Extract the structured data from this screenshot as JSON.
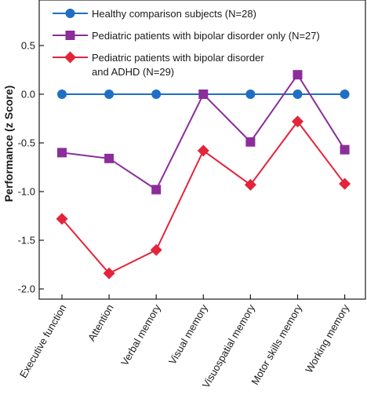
{
  "chart_data": {
    "type": "line",
    "ylabel": "Performance (z Score)",
    "xlabel": "",
    "ylim": [
      -2.0,
      0.5
    ],
    "yticks": [
      "0.5",
      "0.0",
      "-0.5",
      "-1.0",
      "-1.5",
      "-2.0"
    ],
    "ytick_values": [
      0.5,
      0.0,
      -0.5,
      -1.0,
      -1.5,
      -2.0
    ],
    "grid": false,
    "legend_position": "top",
    "categories": [
      "Executive function",
      "Attention",
      "Verbal memory",
      "Visual memory",
      "Visuospatial memory",
      "Motor skills memory",
      "Working memory"
    ],
    "series": [
      {
        "name": "Healthy comparison subjects (N=28)",
        "color": "#1f6fc4",
        "marker": "circle",
        "values": [
          0.0,
          0.0,
          0.0,
          0.0,
          0.0,
          0.0,
          0.0
        ]
      },
      {
        "name": "Pediatric patients with bipolar disorder only (N=27)",
        "color": "#8b2e9a",
        "marker": "square",
        "values": [
          -0.6,
          -0.66,
          -0.98,
          0.0,
          -0.49,
          0.2,
          -0.57
        ]
      },
      {
        "name": "Pediatric patients with bipolar disorder and ADHD (N=29)",
        "name_lines": [
          "Pediatric patients with bipolar disorder",
          "and ADHD (N=29)"
        ],
        "color": "#e3243b",
        "marker": "diamond",
        "values": [
          -1.28,
          -1.84,
          -1.6,
          -0.58,
          -0.93,
          -0.28,
          -0.92
        ]
      }
    ]
  }
}
